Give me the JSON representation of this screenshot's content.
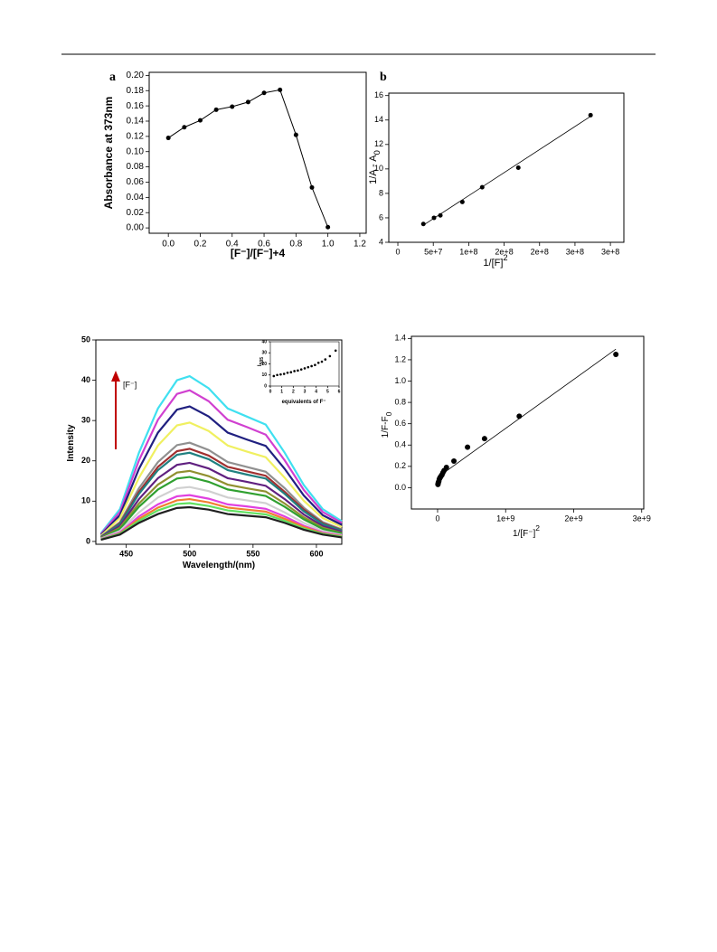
{
  "chart_data": [
    {
      "type": "line",
      "panel_label": "a",
      "color": "#000000",
      "markers": true,
      "x": [
        0,
        0.1,
        0.2,
        0.3,
        0.4,
        0.5,
        0.6,
        0.7,
        0.8,
        0.9,
        1
      ],
      "values": [
        0.118,
        0.132,
        0.141,
        0.155,
        0.159,
        0.165,
        0.177,
        0.181,
        0.122,
        0.053,
        0.001
      ],
      "x_label": "[F⁻]/[F⁻]+4",
      "y_label": "Absorbance at 373nm",
      "xlim": [
        -0.12,
        1.24
      ],
      "ylim": [
        -0.007,
        0.204
      ],
      "xticks": [
        {
          "value": 0,
          "label": "0.0"
        },
        0.2,
        0.4,
        0.6,
        0.8,
        {
          "value": 1,
          "label": "1.0"
        },
        1.2
      ],
      "yticks": [
        {
          "value": 0,
          "label": "0.00"
        },
        0.02,
        0.04,
        0.06,
        0.08,
        {
          "value": 0.1,
          "label": "0.10"
        },
        0.12,
        0.14,
        0.16,
        0.18,
        {
          "value": 0.2,
          "label": "0.20"
        }
      ]
    },
    {
      "type": "scatter",
      "panel_label": "b",
      "color": "#000000",
      "x": [
        36000000,
        51000000,
        60000000,
        91000000,
        119000000,
        170000000,
        272000000
      ],
      "values": [
        5.5,
        6.0,
        6.2,
        7.3,
        8.5,
        10.1,
        14.4
      ],
      "fit_x": [
        36000000,
        272000000
      ],
      "fit_y": [
        5.4,
        14.3
      ],
      "x_label": "1/[F]",
      "x_label_sup": "2",
      "y_label": "1/A - A",
      "y_label_sub": "0",
      "xlim": [
        -12800000,
        319000000
      ],
      "ylim": [
        4,
        16.2
      ],
      "xticks": [
        0,
        {
          "value": 50000000,
          "label": "5e+7"
        },
        {
          "value": 100000000,
          "label": "1e+8"
        },
        {
          "value": 150000000,
          "label": "2e+8"
        },
        {
          "value": 200000000,
          "label": "2e+8"
        },
        {
          "value": 250000000,
          "label": "3e+8"
        },
        {
          "value": 300000000,
          "label": "3e+8"
        }
      ],
      "yticks": [
        4,
        6,
        8,
        10,
        12,
        14,
        16
      ]
    },
    {
      "type": "line",
      "annotation": "[F⁻]",
      "x": [
        430,
        445,
        460,
        475,
        490,
        500,
        515,
        530,
        545,
        560,
        575,
        590,
        605,
        620
      ],
      "series": [
        {
          "color": "#40e0f0",
          "values": [
            2,
            8,
            22,
            33,
            40,
            41,
            38,
            33,
            31,
            29,
            22,
            14,
            8,
            5
          ]
        },
        {
          "color": "#d040d0",
          "values": [
            1.8,
            7.3,
            20.1,
            30.2,
            36.6,
            37.5,
            34.8,
            30.2,
            28.4,
            26.5,
            20.1,
            12.8,
            7.3,
            4.6
          ]
        },
        {
          "color": "#202080",
          "values": [
            1.6,
            6.5,
            18.0,
            27.0,
            32.7,
            33.5,
            31.0,
            27.0,
            25.3,
            23.7,
            18.0,
            11.4,
            6.5,
            4.1
          ]
        },
        {
          "color": "#f0f060",
          "values": [
            1.4,
            5.8,
            15.8,
            23.8,
            28.8,
            29.5,
            27.4,
            23.8,
            22.3,
            20.9,
            15.8,
            10.1,
            5.8,
            3.6
          ]
        },
        {
          "color": "#909090",
          "values": [
            1.2,
            4.8,
            13.2,
            19.7,
            23.9,
            24.5,
            22.7,
            19.7,
            18.5,
            17.3,
            13.2,
            8.4,
            4.8,
            3.0
          ]
        },
        {
          "color": "#a03030",
          "values": [
            1.1,
            4.5,
            12.3,
            18.5,
            22.4,
            23.0,
            21.3,
            18.5,
            17.4,
            16.3,
            12.3,
            7.9,
            4.5,
            2.8
          ]
        },
        {
          "color": "#208080",
          "values": [
            1.1,
            4.3,
            11.8,
            17.7,
            21.5,
            22.0,
            20.4,
            17.7,
            16.6,
            15.6,
            11.8,
            7.5,
            4.3,
            2.7
          ]
        },
        {
          "color": "#602080",
          "values": [
            1.0,
            3.8,
            10.5,
            15.7,
            19.0,
            19.5,
            18.1,
            15.7,
            14.8,
            13.8,
            10.5,
            6.7,
            3.8,
            2.4
          ]
        },
        {
          "color": "#909030",
          "values": [
            0.9,
            3.4,
            9.4,
            14.1,
            17.1,
            17.5,
            16.2,
            14.1,
            13.2,
            12.4,
            9.4,
            6.0,
            3.4,
            2.1
          ]
        },
        {
          "color": "#30a030",
          "values": [
            0.8,
            3.1,
            8.6,
            12.9,
            15.6,
            16.0,
            14.8,
            12.9,
            12.1,
            11.3,
            8.6,
            5.5,
            3.1,
            2.0
          ]
        },
        {
          "color": "#d0d0d0",
          "values": [
            0.7,
            2.6,
            7.2,
            10.9,
            13.2,
            13.5,
            12.5,
            10.9,
            10.2,
            9.5,
            7.2,
            4.6,
            2.6,
            1.6
          ]
        },
        {
          "color": "#e040e0",
          "values": [
            0.6,
            2.2,
            6.2,
            9.2,
            11.2,
            11.5,
            10.6,
            9.2,
            8.7,
            8.1,
            6.2,
            3.9,
            2.2,
            1.4
          ]
        },
        {
          "color": "#f08030",
          "values": [
            0.5,
            2.0,
            5.6,
            8.4,
            10.2,
            10.5,
            9.7,
            8.4,
            7.9,
            7.4,
            5.6,
            3.6,
            2.0,
            1.3
          ]
        },
        {
          "color": "#60e060",
          "values": [
            0.5,
            1.9,
            5.1,
            7.7,
            9.3,
            9.5,
            8.8,
            7.7,
            7.2,
            6.7,
            5.1,
            3.2,
            1.9,
            1.2
          ]
        },
        {
          "color": "#202020",
          "values": [
            0.4,
            1.7,
            4.6,
            6.8,
            8.3,
            8.5,
            7.9,
            6.8,
            6.4,
            6.0,
            4.6,
            2.9,
            1.7,
            1.0
          ]
        }
      ],
      "x_label": "Wavelength/(nm)",
      "y_label": "Intensity",
      "xlim": [
        426,
        620
      ],
      "ylim": [
        -0.7,
        50
      ],
      "xticks": [
        450,
        500,
        550,
        600
      ],
      "yticks": [
        0,
        10,
        20,
        30,
        40,
        50
      ]
    },
    {
      "type": "scatter",
      "color": "#000000",
      "x": [
        0.3,
        0.6,
        0.9,
        1.2,
        1.5,
        1.8,
        2.1,
        2.4,
        2.7,
        3.0,
        3.3,
        3.6,
        3.9,
        4.2,
        4.5,
        4.8,
        5.2,
        5.7
      ],
      "values": [
        9,
        10,
        10.5,
        11,
        12,
        12.5,
        13.5,
        14,
        15,
        16,
        17,
        18,
        19,
        21,
        22,
        24,
        27,
        32
      ],
      "x_label": "equivalents of F⁻",
      "y_label": "I",
      "y_label_sub": "505",
      "xlim": [
        0,
        6
      ],
      "ylim": [
        0,
        40
      ],
      "xticks": [
        0,
        1,
        2,
        3,
        4,
        5,
        6
      ],
      "yticks": [
        0,
        10,
        20,
        30,
        40
      ]
    },
    {
      "type": "scatter",
      "color": "#000000",
      "x": [
        5000000,
        8000000,
        12000000,
        18000000,
        25000000,
        33000000,
        42000000,
        52000000,
        64000000,
        78000000,
        95000000,
        130000000,
        240000000,
        440000000,
        690000000,
        1200000000,
        2620000000
      ],
      "values": [
        0.03,
        0.04,
        0.05,
        0.06,
        0.08,
        0.09,
        0.1,
        0.11,
        0.12,
        0.14,
        0.16,
        0.19,
        0.25,
        0.38,
        0.46,
        0.67,
        1.25
      ],
      "fit_x": [
        50000000,
        2620000000
      ],
      "fit_y": [
        0.12,
        1.3
      ],
      "x_label": "1/[F⁻]",
      "x_label_sup": "2",
      "y_label": "1/F-F",
      "y_label_sub": "0",
      "xlim": [
        -385000000,
        3030000000
      ],
      "ylim": [
        -0.2,
        1.42
      ],
      "xticks": [
        0,
        {
          "value": 1000000000,
          "label": "1e+9"
        },
        {
          "value": 2000000000,
          "label": "2e+9"
        },
        {
          "value": 3000000000,
          "label": "3e+9"
        }
      ],
      "yticks": [
        {
          "value": 0,
          "label": "0.0"
        },
        0.2,
        0.4,
        0.6,
        0.8,
        {
          "value": 1,
          "label": "1.0"
        },
        1.2,
        1.4
      ]
    }
  ]
}
